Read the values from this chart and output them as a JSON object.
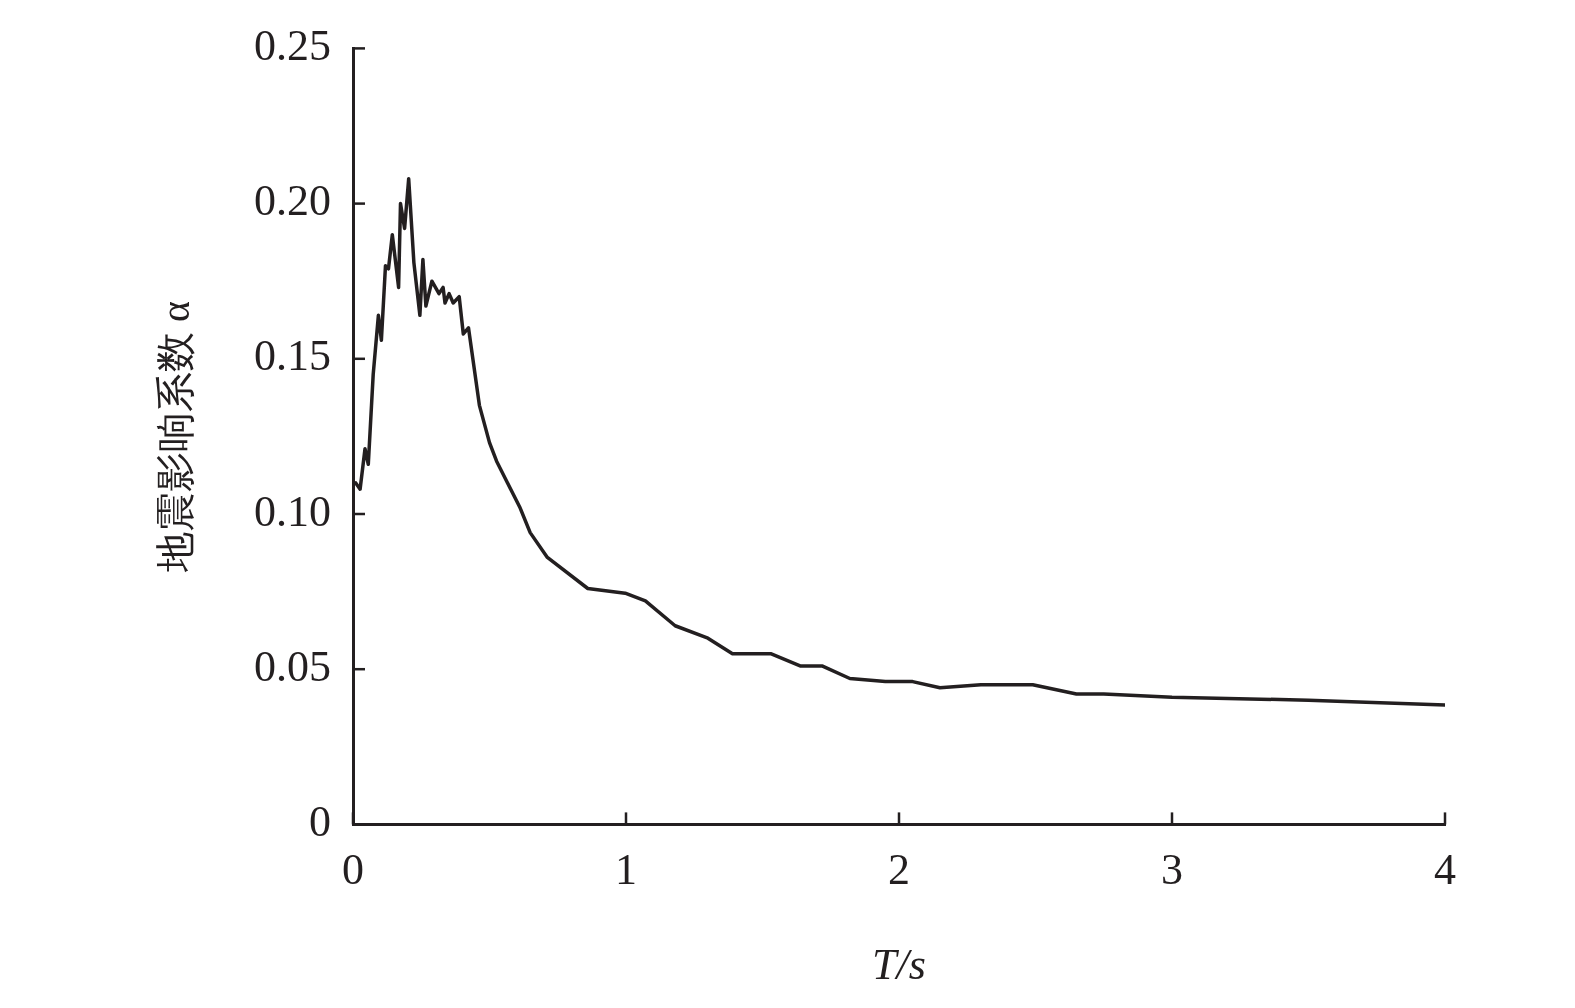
{
  "chart_data": {
    "type": "line",
    "xlabel": "T/s",
    "ylabel": "地震影响系数 α",
    "xlim": [
      0,
      4
    ],
    "ylim": [
      0,
      0.25
    ],
    "xticks": [
      0,
      1,
      2,
      3,
      4
    ],
    "yticks": [
      0,
      0.05,
      {
        "value": 0.1,
        "label": "0.10"
      },
      {
        "value": 0.15,
        "label": "0.15"
      },
      {
        "value": 0.2,
        "label": "0.20"
      },
      {
        "value": 0.25,
        "label": "0.25"
      }
    ],
    "grid": false,
    "legend": false,
    "marker": "none",
    "line_style": "solid",
    "series": [
      {
        "color": "#231f20",
        "x": [
          0.01,
          0.026,
          0.044,
          0.056,
          0.074,
          0.093,
          0.104,
          0.119,
          0.13,
          0.144,
          0.167,
          0.174,
          0.189,
          0.204,
          0.223,
          0.245,
          0.256,
          0.267,
          0.289,
          0.315,
          0.33,
          0.337,
          0.352,
          0.367,
          0.389,
          0.404,
          0.423,
          0.463,
          0.5,
          0.526,
          0.612,
          0.649,
          0.712,
          0.86,
          0.997,
          1.071,
          1.18,
          1.3,
          1.39,
          1.53,
          1.64,
          1.72,
          1.82,
          1.95,
          2.05,
          2.15,
          2.3,
          2.49,
          2.65,
          2.75,
          3.0,
          3.5,
          4.0
        ],
        "values": [
          0.11,
          0.108,
          0.121,
          0.116,
          0.145,
          0.164,
          0.156,
          0.18,
          0.179,
          0.19,
          0.173,
          0.2,
          0.192,
          0.208,
          0.181,
          0.164,
          0.182,
          0.167,
          0.175,
          0.171,
          0.173,
          0.168,
          0.171,
          0.168,
          0.17,
          0.158,
          0.16,
          0.135,
          0.123,
          0.117,
          0.102,
          0.094,
          0.086,
          0.076,
          0.0745,
          0.072,
          0.064,
          0.06,
          0.055,
          0.055,
          0.051,
          0.051,
          0.047,
          0.046,
          0.046,
          0.044,
          0.045,
          0.045,
          0.042,
          0.042,
          0.041,
          0.04,
          0.0385
        ]
      }
    ]
  }
}
